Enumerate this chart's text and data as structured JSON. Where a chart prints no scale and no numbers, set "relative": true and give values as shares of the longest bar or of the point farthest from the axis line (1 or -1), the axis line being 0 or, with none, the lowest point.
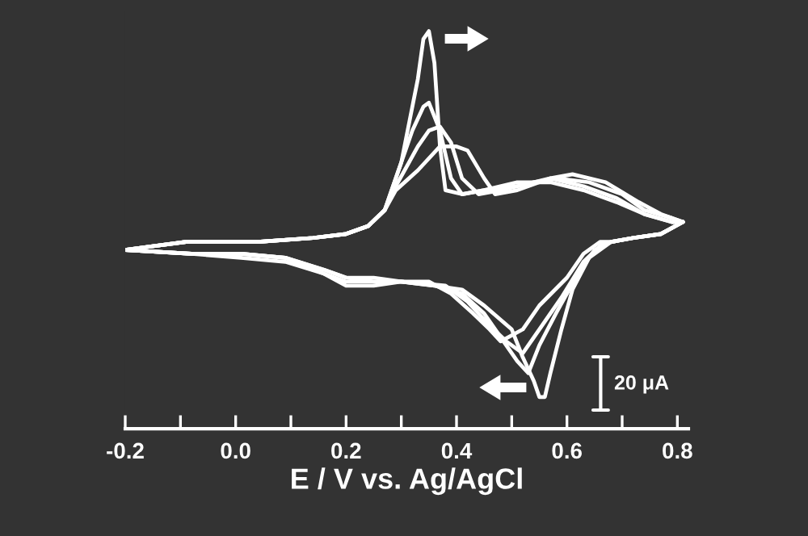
{
  "chart_data": {
    "type": "line",
    "relative": true,
    "xlabel": "E / V vs. Ag/AgCl",
    "xlim": [
      -0.2,
      0.82
    ],
    "xticks": [
      -0.2,
      {
        "value": -0.1,
        "label": null
      },
      {
        "value": 0.0,
        "label": "0.0"
      },
      {
        "value": 0.1,
        "label": null
      },
      0.2,
      {
        "value": 0.3,
        "label": null
      },
      0.4,
      {
        "value": 0.5,
        "label": null
      },
      0.6,
      {
        "value": 0.7,
        "label": null
      },
      0.8
    ],
    "annotations": [
      "20 μA"
    ],
    "series": [
      {
        "color": "#ffffff",
        "x": [
          -0.2,
          -0.09,
          0.04,
          0.14,
          0.2,
          0.24,
          0.27,
          0.3,
          0.33,
          0.34,
          0.35,
          0.36,
          0.37,
          0.38,
          0.41,
          0.45,
          0.51,
          0.57,
          0.63,
          0.69,
          0.74,
          0.79,
          0.81
        ],
        "values": [
          0.45,
          0.47,
          0.47,
          0.48,
          0.49,
          0.51,
          0.55,
          0.67,
          0.88,
          0.98,
          1.0,
          0.92,
          0.71,
          0.6,
          0.59,
          0.6,
          0.62,
          0.62,
          0.6,
          0.57,
          0.54,
          0.52,
          0.52
        ]
      },
      {
        "color": "#ffffff",
        "x": [
          -0.2,
          -0.08,
          0.01,
          0.09,
          0.16,
          0.2,
          0.25,
          0.3,
          0.36,
          0.41,
          0.45,
          0.5,
          0.52,
          0.54,
          0.55,
          0.56,
          0.57,
          0.59,
          0.61,
          0.64,
          0.68,
          0.72,
          0.77,
          0.81
        ],
        "values": [
          0.45,
          0.44,
          0.43,
          0.42,
          0.39,
          0.36,
          0.36,
          0.37,
          0.36,
          0.35,
          0.31,
          0.25,
          0.18,
          0.12,
          0.08,
          0.08,
          0.14,
          0.25,
          0.35,
          0.43,
          0.47,
          0.48,
          0.49,
          0.52
        ]
      },
      {
        "color": "#ffffff",
        "x": [
          -0.2,
          -0.09,
          0.04,
          0.14,
          0.2,
          0.24,
          0.27,
          0.29,
          0.32,
          0.34,
          0.35,
          0.37,
          0.39,
          0.41,
          0.45,
          0.51,
          0.57,
          0.63,
          0.69,
          0.74,
          0.79,
          0.81
        ],
        "values": [
          0.45,
          0.47,
          0.47,
          0.48,
          0.49,
          0.51,
          0.55,
          0.63,
          0.75,
          0.81,
          0.82,
          0.75,
          0.63,
          0.59,
          0.6,
          0.61,
          0.63,
          0.61,
          0.58,
          0.54,
          0.52,
          0.52
        ]
      },
      {
        "color": "#ffffff",
        "x": [
          -0.2,
          -0.08,
          0.01,
          0.09,
          0.16,
          0.2,
          0.25,
          0.3,
          0.36,
          0.41,
          0.45,
          0.48,
          0.51,
          0.53,
          0.55,
          0.58,
          0.62,
          0.65,
          0.68,
          0.72,
          0.77,
          0.81
        ],
        "values": [
          0.45,
          0.44,
          0.44,
          0.43,
          0.39,
          0.37,
          0.37,
          0.37,
          0.36,
          0.34,
          0.29,
          0.23,
          0.17,
          0.14,
          0.21,
          0.29,
          0.39,
          0.45,
          0.47,
          0.48,
          0.49,
          0.52
        ]
      },
      {
        "color": "#ffffff",
        "x": [
          -0.2,
          -0.09,
          0.04,
          0.14,
          0.2,
          0.24,
          0.27,
          0.29,
          0.33,
          0.35,
          0.37,
          0.39,
          0.41,
          0.44,
          0.48,
          0.54,
          0.58,
          0.64,
          0.7,
          0.74,
          0.79,
          0.81
        ],
        "values": [
          0.45,
          0.47,
          0.47,
          0.48,
          0.49,
          0.51,
          0.55,
          0.61,
          0.71,
          0.75,
          0.76,
          0.72,
          0.63,
          0.59,
          0.6,
          0.62,
          0.63,
          0.62,
          0.59,
          0.55,
          0.53,
          0.52
        ]
      },
      {
        "color": "#ffffff",
        "x": [
          -0.2,
          -0.08,
          0.01,
          0.09,
          0.16,
          0.2,
          0.25,
          0.3,
          0.38,
          0.42,
          0.46,
          0.49,
          0.52,
          0.55,
          0.59,
          0.63,
          0.66,
          0.68,
          0.72,
          0.77,
          0.81
        ],
        "values": [
          0.45,
          0.44,
          0.44,
          0.43,
          0.4,
          0.38,
          0.37,
          0.37,
          0.36,
          0.32,
          0.26,
          0.22,
          0.19,
          0.25,
          0.33,
          0.42,
          0.46,
          0.47,
          0.48,
          0.49,
          0.52
        ]
      },
      {
        "color": "#ffffff",
        "x": [
          -0.2,
          -0.09,
          0.04,
          0.14,
          0.2,
          0.24,
          0.27,
          0.29,
          0.33,
          0.37,
          0.4,
          0.42,
          0.45,
          0.47,
          0.51,
          0.57,
          0.61,
          0.67,
          0.73,
          0.77,
          0.81
        ],
        "values": [
          0.45,
          0.47,
          0.47,
          0.48,
          0.49,
          0.51,
          0.55,
          0.6,
          0.65,
          0.71,
          0.71,
          0.7,
          0.63,
          0.59,
          0.6,
          0.63,
          0.64,
          0.62,
          0.57,
          0.54,
          0.52
        ]
      },
      {
        "color": "#ffffff",
        "x": [
          -0.2,
          -0.08,
          0.01,
          0.09,
          0.16,
          0.2,
          0.25,
          0.3,
          0.35,
          0.39,
          0.43,
          0.46,
          0.48,
          0.52,
          0.55,
          0.6,
          0.63,
          0.66,
          0.68,
          0.72,
          0.77,
          0.81
        ],
        "values": [
          0.45,
          0.44,
          0.44,
          0.43,
          0.4,
          0.38,
          0.38,
          0.37,
          0.37,
          0.34,
          0.29,
          0.25,
          0.22,
          0.25,
          0.31,
          0.38,
          0.44,
          0.47,
          0.47,
          0.48,
          0.49,
          0.52
        ]
      }
    ]
  }
}
